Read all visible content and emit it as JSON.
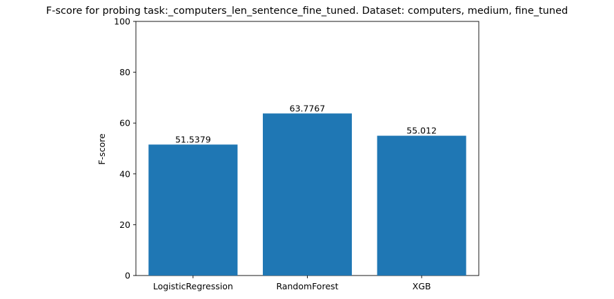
{
  "chart_data": {
    "type": "bar",
    "title": "F-score for probing task:_computers_len_sentence_fine_tuned. Dataset: computers, medium, fine_tuned",
    "xlabel": "",
    "ylabel": "F-score",
    "categories": [
      "LogisticRegression",
      "RandomForest",
      "XGB"
    ],
    "values": [
      51.5379,
      63.7767,
      55.012
    ],
    "data_labels": [
      "51.5379",
      "63.7767",
      "55.012"
    ],
    "ylim": [
      0,
      100
    ],
    "yticks": [
      0,
      20,
      40,
      60,
      80,
      100
    ],
    "bar_color": "#1f77b4",
    "grid": false,
    "legend": "none"
  }
}
